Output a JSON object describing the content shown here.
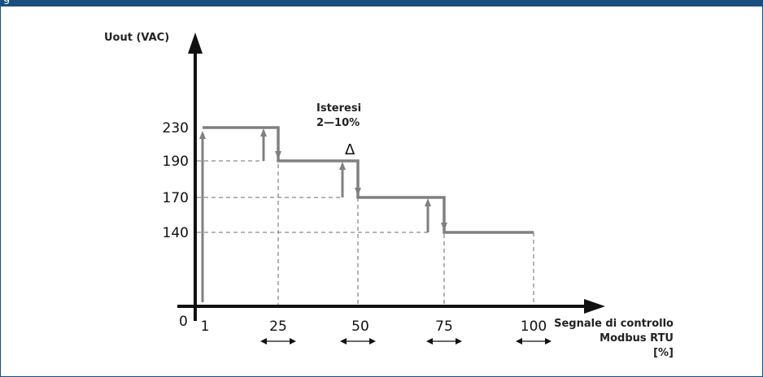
{
  "header": {
    "fragment": "g"
  },
  "chart_data": {
    "type": "line",
    "xlabel": [
      "Segnale di controllo",
      "Modbus RTU",
      "[%]"
    ],
    "ylabel": "Uout (VAC)",
    "origin_label": "0",
    "x_ticks": [
      "1",
      "25",
      "50",
      "75",
      "100"
    ],
    "y_ticks": [
      "230",
      "190",
      "170",
      "140"
    ],
    "annotation": [
      "Isteresi",
      "2—10%"
    ],
    "delta_symbol": "Δ",
    "series": [
      {
        "values_decreasing": [
          {
            "x": 1,
            "y": 230
          },
          {
            "x": 25,
            "y": 230
          },
          {
            "x": 25,
            "y": 190
          },
          {
            "x": 50,
            "y": 190
          },
          {
            "x": 50,
            "y": 170
          },
          {
            "x": 75,
            "y": 170
          },
          {
            "x": 75,
            "y": 140
          },
          {
            "x": 100,
            "y": 140
          }
        ],
        "values_increasing_switch_points": [
          {
            "x": 21,
            "from": 190,
            "to": 230
          },
          {
            "x": 46,
            "from": 170,
            "to": 190
          },
          {
            "x": 71,
            "from": 140,
            "to": 170
          }
        ]
      }
    ],
    "colors": {
      "line": "#808080",
      "axis": "#111111",
      "dashed": "#8a8a8a",
      "frame": "#1a4f7d"
    }
  }
}
